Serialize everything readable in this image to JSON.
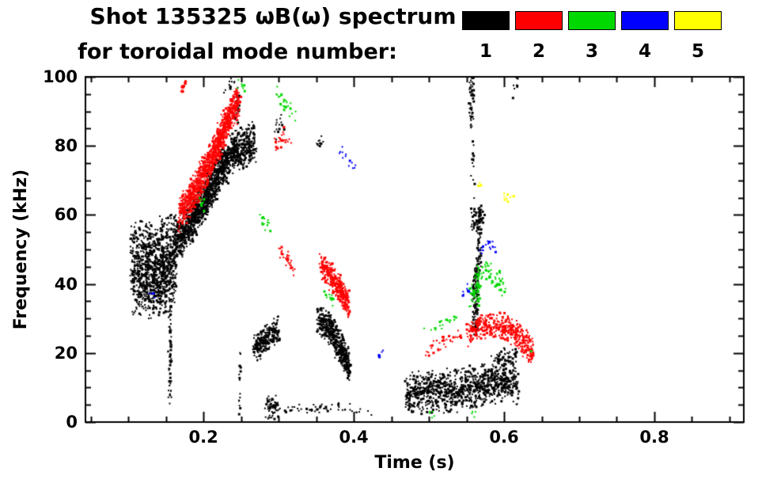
{
  "title": {
    "line1": "Shot 135325 ωB(ω) spectrum",
    "line2": "for toroidal mode number:"
  },
  "legend": {
    "position": "top-right",
    "entries": [
      {
        "label": "1",
        "color": "#000000"
      },
      {
        "label": "2",
        "color": "#ff0000"
      },
      {
        "label": "3",
        "color": "#00d900"
      },
      {
        "label": "4",
        "color": "#0000ff"
      },
      {
        "label": "5",
        "color": "#ffff00"
      }
    ]
  },
  "chart_data": {
    "type": "scatter",
    "title": "Shot 135325 ωB(ω) spectrum for toroidal mode number 1-5",
    "xlabel": "Time (s)",
    "ylabel": "Frequency (kHz)",
    "xlim": [
      0.043,
      0.919
    ],
    "ylim": [
      0,
      100
    ],
    "grid": false,
    "x_major_ticks": [
      0.2,
      0.4,
      0.6,
      0.8
    ],
    "x_tick_labels": [
      "0.2",
      "0.4",
      "0.6",
      "0.8"
    ],
    "x_minor_step": 0.05,
    "y_major_ticks": [
      0,
      20,
      40,
      60,
      80,
      100
    ],
    "y_tick_labels": [
      "0",
      "20",
      "40",
      "60",
      "80",
      "100"
    ],
    "y_minor_step": 5,
    "series": [
      {
        "name": "n=1",
        "color": "#000000",
        "tracks": [
          {
            "pts": [
              [
                0.105,
                44
              ],
              [
                0.125,
                44
              ],
              [
                0.145,
                45
              ],
              [
                0.163,
                47
              ]
            ],
            "w": 20,
            "d": 0.85
          },
          {
            "pts": [
              [
                0.115,
                38
              ],
              [
                0.15,
                37
              ]
            ],
            "w": 8,
            "d": 0.5
          },
          {
            "pts": [
              [
                0.163,
                52
              ],
              [
                0.185,
                58
              ],
              [
                0.205,
                66
              ],
              [
                0.225,
                74
              ],
              [
                0.245,
                79
              ],
              [
                0.268,
                81
              ]
            ],
            "w": 9,
            "d": 0.9
          },
          {
            "pts": [
              [
                0.155,
                6
              ],
              [
                0.156,
                34
              ]
            ],
            "w": 1.5,
            "tw": 0.003,
            "d": 0.55
          },
          {
            "pts": [
              [
                0.225,
                96
              ],
              [
                0.244,
                99
              ]
            ],
            "w": 4,
            "d": 0.35
          },
          {
            "pts": [
              [
                0.244,
                87
              ],
              [
                0.246,
                94
              ]
            ],
            "w": 2,
            "tw": 0.003,
            "d": 0.5
          },
          {
            "pts": [
              [
                0.248,
                2
              ],
              [
                0.2485,
                20
              ]
            ],
            "w": 1,
            "tw": 0.0015,
            "d": 0.35
          },
          {
            "pts": [
              [
                0.268,
                21
              ],
              [
                0.283,
                24
              ],
              [
                0.3,
                27
              ]
            ],
            "w": 6,
            "d": 0.9
          },
          {
            "pts": [
              [
                0.285,
                4
              ],
              [
                0.33,
                4
              ],
              [
                0.38,
                4
              ],
              [
                0.425,
                3
              ]
            ],
            "w": 2.5,
            "d": 0.45
          },
          {
            "pts": [
              [
                0.284,
                4
              ],
              [
                0.297,
                4
              ]
            ],
            "w": 5,
            "d": 0.85
          },
          {
            "pts": [
              [
                0.295,
                84
              ],
              [
                0.306,
                87
              ]
            ],
            "w": 4,
            "d": 0.45
          },
          {
            "pts": [
              [
                0.352,
                80
              ],
              [
                0.358,
                83
              ]
            ],
            "w": 3,
            "d": 0.4
          },
          {
            "pts": [
              [
                0.353,
                30
              ],
              [
                0.368,
                27
              ],
              [
                0.383,
                21
              ],
              [
                0.394,
                16
              ]
            ],
            "w": 7,
            "d": 0.9
          },
          {
            "pts": [
              [
                0.47,
                8
              ],
              [
                0.5,
                9
              ],
              [
                0.53,
                9
              ],
              [
                0.555,
                10
              ],
              [
                0.575,
                11
              ],
              [
                0.6,
                12
              ],
              [
                0.617,
                11
              ]
            ],
            "w": 9,
            "d": 0.8
          },
          {
            "pts": [
              [
                0.583,
                17
              ],
              [
                0.6,
                19
              ],
              [
                0.615,
                18
              ]
            ],
            "w": 5,
            "d": 0.6
          },
          {
            "pts": [
              [
                0.556,
                86
              ],
              [
                0.5565,
                100
              ]
            ],
            "w": 1.5,
            "tw": 0.004,
            "d": 0.7
          },
          {
            "pts": [
              [
                0.558,
                57
              ],
              [
                0.5585,
                82
              ]
            ],
            "w": 1.5,
            "tw": 0.003,
            "d": 0.45
          },
          {
            "pts": [
              [
                0.562,
                26
              ],
              [
                0.563,
                45
              ]
            ],
            "w": 2,
            "tw": 0.005,
            "d": 0.85
          },
          {
            "pts": [
              [
                0.566,
                45
              ],
              [
                0.5665,
                62
              ]
            ],
            "w": 2,
            "tw": 0.004,
            "d": 0.7
          },
          {
            "pts": [
              [
                0.558,
                58
              ],
              [
                0.572,
                60
              ]
            ],
            "w": 5,
            "d": 0.6
          },
          {
            "pts": [
              [
                0.612,
                96
              ],
              [
                0.621,
                99
              ]
            ],
            "w": 4,
            "d": 0.4
          }
        ]
      },
      {
        "name": "n=2",
        "color": "#ff0000",
        "tracks": [
          {
            "pts": [
              [
                0.168,
                60
              ],
              [
                0.186,
                66
              ],
              [
                0.203,
                73
              ],
              [
                0.22,
                81
              ],
              [
                0.235,
                89
              ],
              [
                0.247,
                93
              ]
            ],
            "w": 8,
            "d": 0.85
          },
          {
            "pts": [
              [
                0.171,
                96
              ],
              [
                0.176,
                100
              ]
            ],
            "w": 3,
            "tw": 0.003,
            "d": 0.4
          },
          {
            "pts": [
              [
                0.295,
                79
              ],
              [
                0.305,
                83
              ],
              [
                0.315,
                81
              ]
            ],
            "w": 4,
            "d": 0.5
          },
          {
            "pts": [
              [
                0.302,
                50
              ],
              [
                0.312,
                47
              ],
              [
                0.32,
                44
              ]
            ],
            "w": 3.5,
            "d": 0.5
          },
          {
            "pts": [
              [
                0.357,
                45
              ],
              [
                0.37,
                42
              ],
              [
                0.383,
                38
              ],
              [
                0.393,
                34
              ]
            ],
            "w": 6,
            "d": 0.85
          },
          {
            "pts": [
              [
                0.498,
                21
              ],
              [
                0.52,
                23
              ],
              [
                0.542,
                25
              ]
            ],
            "w": 3.5,
            "d": 0.45
          },
          {
            "pts": [
              [
                0.552,
                26
              ],
              [
                0.575,
                28
              ],
              [
                0.598,
                28
              ],
              [
                0.615,
                26
              ],
              [
                0.63,
                22
              ],
              [
                0.638,
                20
              ]
            ],
            "w": 6,
            "d": 0.8
          }
        ]
      },
      {
        "name": "n=3",
        "color": "#00d900",
        "tracks": [
          {
            "pts": [
              [
                0.194,
                64
              ],
              [
                0.201,
                62
              ]
            ],
            "w": 3,
            "d": 0.4
          },
          {
            "pts": [
              [
                0.209,
                100
              ],
              [
                0.216,
                99
              ]
            ],
            "w": 2,
            "d": 0.3
          },
          {
            "pts": [
              [
                0.246,
                99
              ],
              [
                0.257,
                96
              ]
            ],
            "w": 3.5,
            "d": 0.45
          },
          {
            "pts": [
              [
                0.277,
                59
              ],
              [
                0.288,
                56
              ]
            ],
            "w": 3.5,
            "d": 0.45
          },
          {
            "pts": [
              [
                0.297,
                95
              ],
              [
                0.31,
                91
              ],
              [
                0.322,
                89
              ]
            ],
            "w": 4,
            "d": 0.4
          },
          {
            "pts": [
              [
                0.362,
                37
              ],
              [
                0.373,
                35
              ]
            ],
            "w": 3.5,
            "d": 0.45
          },
          {
            "pts": [
              [
                0.494,
                27
              ],
              [
                0.515,
                28
              ],
              [
                0.536,
                30
              ]
            ],
            "w": 3,
            "d": 0.35
          },
          {
            "pts": [
              [
                0.556,
                36
              ],
              [
                0.566,
                41
              ],
              [
                0.578,
                44
              ],
              [
                0.59,
                42
              ],
              [
                0.601,
                38
              ]
            ],
            "w": 5,
            "d": 0.5
          },
          {
            "pts": [
              [
                0.5655,
                33
              ],
              [
                0.566,
                45
              ]
            ],
            "w": 1.5,
            "tw": 0.003,
            "d": 0.6
          },
          {
            "pts": [
              [
                0.499,
                3
              ],
              [
                0.511,
                2
              ]
            ],
            "w": 2.5,
            "d": 0.45
          },
          {
            "pts": [
              [
                0.556,
                2
              ],
              [
                0.563,
                3
              ]
            ],
            "w": 2.5,
            "d": 0.45
          },
          {
            "pts": [
              [
                0.631,
                21
              ],
              [
                0.639,
                20
              ]
            ],
            "w": 2.5,
            "d": 0.4
          }
        ]
      },
      {
        "name": "n=4",
        "color": "#0000ff",
        "tracks": [
          {
            "pts": [
              [
                0.13,
                38
              ],
              [
                0.135,
                37
              ]
            ],
            "w": 2.5,
            "d": 0.5
          },
          {
            "pts": [
              [
                0.382,
                79
              ],
              [
                0.392,
                76
              ],
              [
                0.401,
                73
              ]
            ],
            "w": 2.5,
            "d": 0.45
          },
          {
            "pts": [
              [
                0.431,
                20
              ],
              [
                0.437,
                20
              ]
            ],
            "w": 2,
            "d": 0.5
          },
          {
            "pts": [
              [
                0.544,
                37
              ],
              [
                0.554,
                39
              ]
            ],
            "w": 2.5,
            "d": 0.5
          },
          {
            "pts": [
              [
                0.567,
                49
              ],
              [
                0.578,
                52
              ],
              [
                0.589,
                50
              ]
            ],
            "w": 3,
            "d": 0.45
          }
        ]
      },
      {
        "name": "n=5",
        "color": "#ffff00",
        "tracks": [
          {
            "pts": [
              [
                0.566,
                68
              ],
              [
                0.571,
                69
              ]
            ],
            "w": 2,
            "d": 0.5
          },
          {
            "pts": [
              [
                0.601,
                65
              ],
              [
                0.611,
                66
              ]
            ],
            "w": 2.5,
            "d": 0.6
          }
        ]
      }
    ]
  }
}
